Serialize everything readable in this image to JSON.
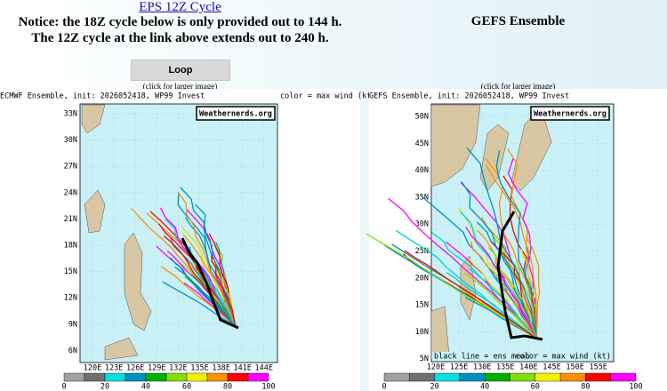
{
  "left": {
    "link": "EPS 12Z Cycle",
    "notice": [
      "Notice: the 18Z cycle below is only provided out to 144 h.",
      "The 12Z cycle at the link above extends out to 240 h."
    ],
    "button": "Loop",
    "caption": "(click for larger image)",
    "map": {
      "title": "ECMWF Ensemble, init: 2026052418, WP99 Invest",
      "color_note": "color = max wind (kt)",
      "watermark": "Weathernerds.org",
      "lat_labels": [
        "33N",
        "30N",
        "27N",
        "24N",
        "21N",
        "18N",
        "15N",
        "12N",
        "9N",
        "6N"
      ],
      "lon_labels": [
        "120E",
        "123E",
        "126E",
        "129E",
        "132E",
        "135E",
        "138E",
        "141E",
        "144E"
      ],
      "colorbar_labels": [
        "0",
        "20",
        "40",
        "60",
        "80",
        "100"
      ]
    }
  },
  "right": {
    "heading": "GEFS Ensemble",
    "caption": "(click for larger image)",
    "map": {
      "title": "GEFS Ensemble, init: 2026052418, WP99 Invest",
      "watermark": "Weathernerds.org",
      "mean_note": "black line = ens mean",
      "color_note": "color = max wind (kt)",
      "lat_labels": [
        "50N",
        "45N",
        "40N",
        "35N",
        "30N",
        "25N",
        "20N",
        "15N",
        "10N",
        "5N"
      ],
      "lon_labels": [
        "120E",
        "125E",
        "130E",
        "135E",
        "140E",
        "145E",
        "150E",
        "155E"
      ],
      "colorbar_labels": [
        "0",
        "20",
        "40",
        "60",
        "80",
        "100"
      ]
    }
  }
}
